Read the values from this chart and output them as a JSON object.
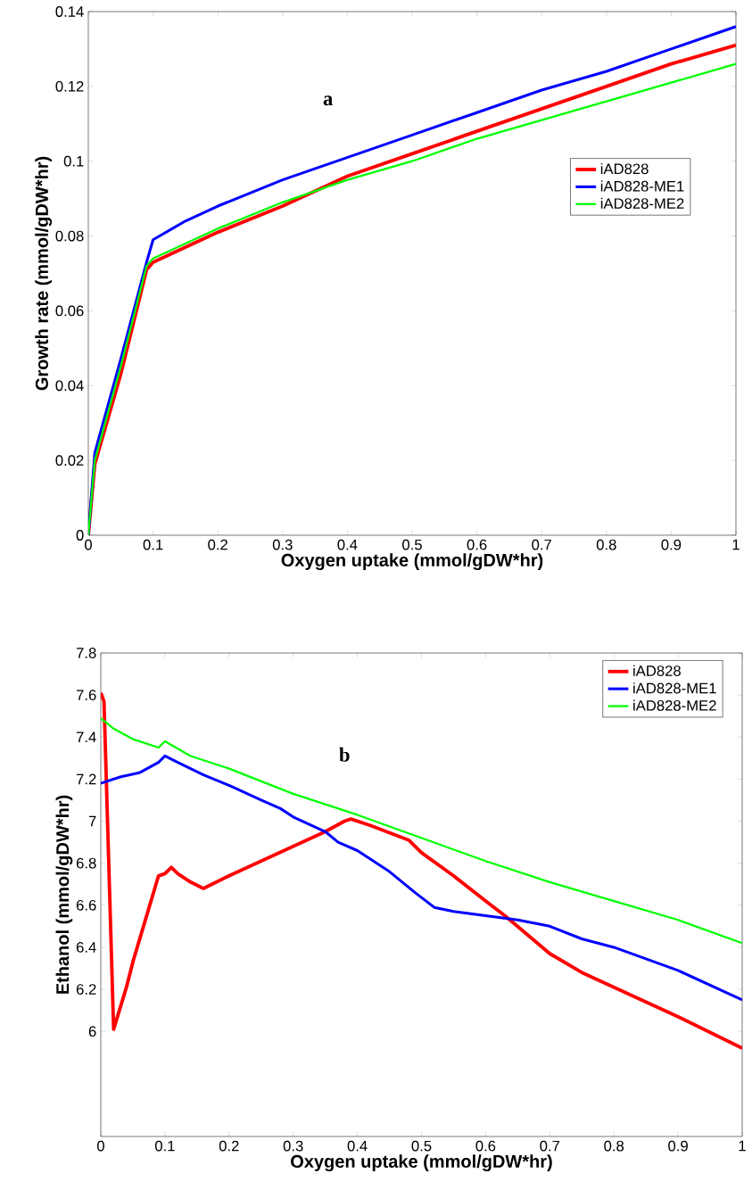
{
  "chart_data": [
    {
      "type": "line",
      "xlabel": "Oxygen uptake  (mmol/gDW*hr)",
      "ylabel": "Growth rate (mmol/gDW*hr)",
      "annotations": [
        "a"
      ],
      "xlim": [
        0,
        1
      ],
      "ylim": [
        0,
        0.14
      ],
      "xticks": [
        0,
        0.1,
        0.2,
        0.3,
        0.4,
        0.5,
        0.6,
        0.7,
        0.8,
        0.9,
        1
      ],
      "yticks": [
        0,
        0.02,
        0.04,
        0.06,
        0.08,
        0.1,
        0.12,
        0.14
      ],
      "legend": "right",
      "series": [
        {
          "name": "iAD828",
          "color": "#ff0000",
          "x": [
            0,
            0.01,
            0.05,
            0.09,
            0.1,
            0.15,
            0.2,
            0.3,
            0.4,
            0.5,
            0.6,
            0.7,
            0.8,
            0.9,
            1
          ],
          "values": [
            0,
            0.019,
            0.043,
            0.071,
            0.073,
            0.077,
            0.081,
            0.088,
            0.096,
            0.102,
            0.108,
            0.114,
            0.12,
            0.126,
            0.131
          ]
        },
        {
          "name": "iAD828-ME1",
          "color": "#0000ff",
          "x": [
            0,
            0.01,
            0.05,
            0.09,
            0.1,
            0.15,
            0.2,
            0.3,
            0.4,
            0.5,
            0.6,
            0.7,
            0.8,
            0.9,
            1
          ],
          "values": [
            0,
            0.022,
            0.047,
            0.073,
            0.079,
            0.084,
            0.088,
            0.095,
            0.101,
            0.107,
            0.113,
            0.119,
            0.124,
            0.13,
            0.136
          ]
        },
        {
          "name": "iAD828-ME2",
          "color": "#00ff00",
          "x": [
            0,
            0.01,
            0.05,
            0.09,
            0.1,
            0.15,
            0.2,
            0.3,
            0.4,
            0.5,
            0.6,
            0.7,
            0.8,
            0.9,
            1
          ],
          "values": [
            0,
            0.02,
            0.045,
            0.072,
            0.074,
            0.078,
            0.082,
            0.089,
            0.095,
            0.1,
            0.106,
            0.111,
            0.116,
            0.121,
            0.126
          ]
        }
      ]
    },
    {
      "type": "line",
      "xlabel": "Oxygen uptake  (mmol/gDW*hr)",
      "ylabel": "Ethanol (mmol/gDW*hr)",
      "annotations": [
        "b"
      ],
      "xlim": [
        0,
        1
      ],
      "ylim": [
        5.5,
        7.8
      ],
      "xticks": [
        0,
        0.1,
        0.2,
        0.3,
        0.4,
        0.5,
        0.6,
        0.7,
        0.8,
        0.9,
        1
      ],
      "yticks": [
        6,
        6.2,
        6.4,
        6.6,
        6.8,
        7,
        7.2,
        7.4,
        7.6,
        7.8
      ],
      "legend": "top right",
      "series": [
        {
          "name": "iAD828",
          "color": "#ff0000",
          "x": [
            0,
            0.005,
            0.02,
            0.04,
            0.05,
            0.09,
            0.1,
            0.11,
            0.12,
            0.14,
            0.16,
            0.2,
            0.25,
            0.3,
            0.35,
            0.38,
            0.39,
            0.42,
            0.48,
            0.5,
            0.55,
            0.6,
            0.63,
            0.7,
            0.75,
            0.8,
            0.9,
            1
          ],
          "values": [
            7.61,
            7.57,
            6.01,
            6.21,
            6.33,
            6.74,
            6.75,
            6.78,
            6.75,
            6.71,
            6.68,
            6.74,
            6.81,
            6.88,
            6.95,
            7.0,
            7.01,
            6.98,
            6.91,
            6.85,
            6.74,
            6.62,
            6.55,
            6.37,
            6.28,
            6.21,
            6.07,
            5.92
          ]
        },
        {
          "name": "iAD828-ME1",
          "color": "#0000ff",
          "x": [
            0,
            0.03,
            0.06,
            0.09,
            0.1,
            0.12,
            0.16,
            0.2,
            0.25,
            0.28,
            0.3,
            0.35,
            0.37,
            0.4,
            0.45,
            0.49,
            0.52,
            0.55,
            0.6,
            0.65,
            0.7,
            0.75,
            0.8,
            0.9,
            1
          ],
          "values": [
            7.18,
            7.21,
            7.23,
            7.28,
            7.31,
            7.28,
            7.22,
            7.17,
            7.1,
            7.06,
            7.02,
            6.95,
            6.9,
            6.86,
            6.76,
            6.66,
            6.59,
            6.57,
            6.55,
            6.53,
            6.5,
            6.44,
            6.4,
            6.29,
            6.15
          ]
        },
        {
          "name": "iAD828-ME2",
          "color": "#00ff00",
          "x": [
            0,
            0.02,
            0.05,
            0.09,
            0.1,
            0.14,
            0.2,
            0.3,
            0.4,
            0.5,
            0.6,
            0.7,
            0.8,
            0.9,
            1
          ],
          "values": [
            7.49,
            7.44,
            7.39,
            7.35,
            7.38,
            7.31,
            7.25,
            7.13,
            7.03,
            6.92,
            6.81,
            6.71,
            6.62,
            6.53,
            6.42
          ]
        }
      ]
    }
  ]
}
